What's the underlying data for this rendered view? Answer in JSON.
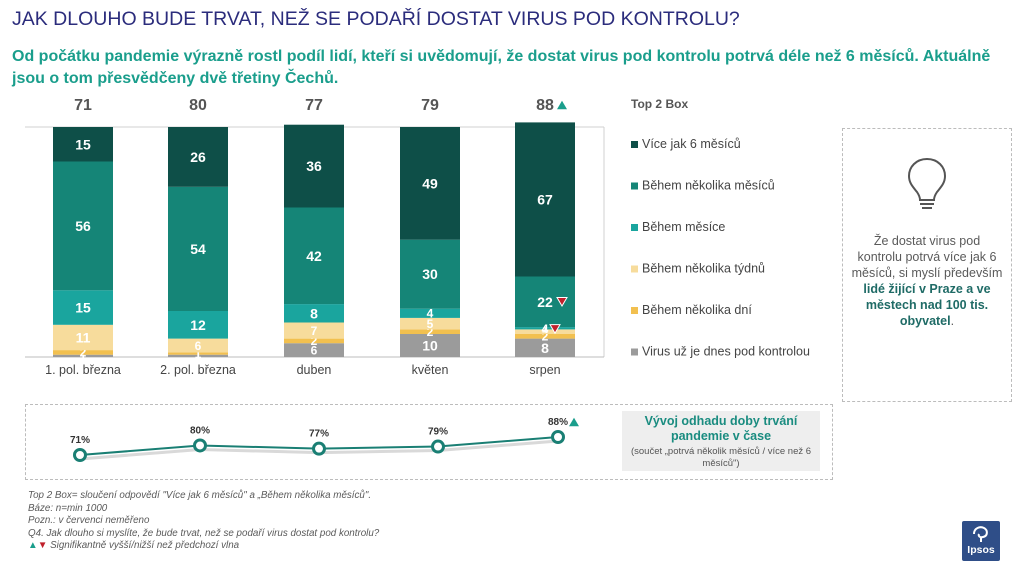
{
  "header": {
    "title": "JAK DLOUHO BUDE TRVAT, NEŽ SE PODAŘÍ DOSTAT VIRUS POD KONTROLU?",
    "subtitle": "Od počátku pandemie výrazně rostl podíl lidí, kteří si uvědomují, že dostat virus pod kontrolu potrvá déle než 6 měsíců. Aktuálně jsou o tom přesvědčeny dvě třetiny Čechů."
  },
  "chart_data": {
    "type": "bar",
    "stacked": true,
    "categories": [
      "1. pol. března",
      "2. pol. března",
      "duben",
      "květen",
      "srpen"
    ],
    "legend_title": "Top 2 Box",
    "top2box": [
      "71",
      "80",
      "77",
      "79",
      "88"
    ],
    "top2box_marker": [
      null,
      null,
      null,
      null,
      "up"
    ],
    "series": [
      {
        "name": "Virus už je dnes pod kontrolou",
        "color": "#9b9b9b",
        "values": [
          1,
          1,
          6,
          10,
          8
        ],
        "labels": [
          "1",
          "1",
          "6",
          "10",
          "8"
        ],
        "markers": [
          null,
          null,
          null,
          null,
          null
        ]
      },
      {
        "name": "Během několika dní",
        "color": "#f2c04f",
        "values": [
          2,
          1,
          2,
          2,
          2
        ],
        "labels": [
          "2",
          "1",
          "2",
          "2",
          "2"
        ],
        "markers": [
          null,
          null,
          null,
          null,
          null
        ]
      },
      {
        "name": "Během několika týdnů",
        "color": "#f7dc9c",
        "values": [
          11,
          6,
          7,
          5,
          2
        ],
        "labels": [
          "11",
          "6",
          "7",
          "5",
          ""
        ],
        "markers": [
          null,
          null,
          null,
          null,
          null
        ]
      },
      {
        "name": "Během měsíce",
        "color": "#1aa59e",
        "values": [
          15,
          12,
          8,
          4,
          1
        ],
        "labels": [
          "15",
          "12",
          "8",
          "4",
          "1"
        ],
        "markers": [
          null,
          null,
          null,
          null,
          "down"
        ]
      },
      {
        "name": "Během několika měsíců",
        "color": "#158577",
        "values": [
          56,
          54,
          42,
          30,
          22
        ],
        "labels": [
          "56",
          "54",
          "42",
          "30",
          "22"
        ],
        "markers": [
          null,
          null,
          null,
          null,
          "down"
        ]
      },
      {
        "name": "Více jak 6 měsíců",
        "color": "#0e4f48",
        "values": [
          15,
          26,
          36,
          49,
          67
        ],
        "labels": [
          "15",
          "26",
          "36",
          "49",
          "67"
        ],
        "markers": [
          null,
          null,
          null,
          null,
          null
        ]
      }
    ],
    "lower_labels_extra": [
      null,
      null,
      null,
      null,
      "4"
    ],
    "lower_labels_extra_marker": [
      null,
      null,
      null,
      null,
      "down"
    ],
    "trend": {
      "values": [
        71,
        80,
        77,
        79,
        88
      ],
      "labels": [
        "71%",
        "80%",
        "77%",
        "79%",
        "88%"
      ],
      "markers": [
        null,
        null,
        null,
        null,
        "up"
      ],
      "color": "#1a7f74"
    }
  },
  "insight": {
    "text_before": "Že dostat virus pod kontrolu potrvá více jak 6 měsíců, si myslí především ",
    "text_bold": "lidé žijící v Praze a ve městech nad 100 tis. obyvatel",
    "text_after": ".",
    "icon": "lightbulb-icon"
  },
  "trend_box": {
    "title": "Vývoj odhadu doby trvání pandemie v čase",
    "subtitle": "(součet „potrvá několik měsíců / více než 6 měsíců\")"
  },
  "footnotes": {
    "line1": "Top 2 Box= sloučení odpovědí \"Více jak 6 měsíců\" a „Během několika měsíců\".",
    "line2": "Báze: n=min 1000",
    "line3": "Pozn.: v červenci neměřeno",
    "line4": "Q4. Jak dlouho si myslíte, že bude trvat, než se podaří virus dostat pod kontrolu?",
    "line5": "Signifikantně vyšší/nižší než předchozí vlna"
  },
  "brand": {
    "logo_text": "Ipsos",
    "color": "#2f4e88"
  }
}
